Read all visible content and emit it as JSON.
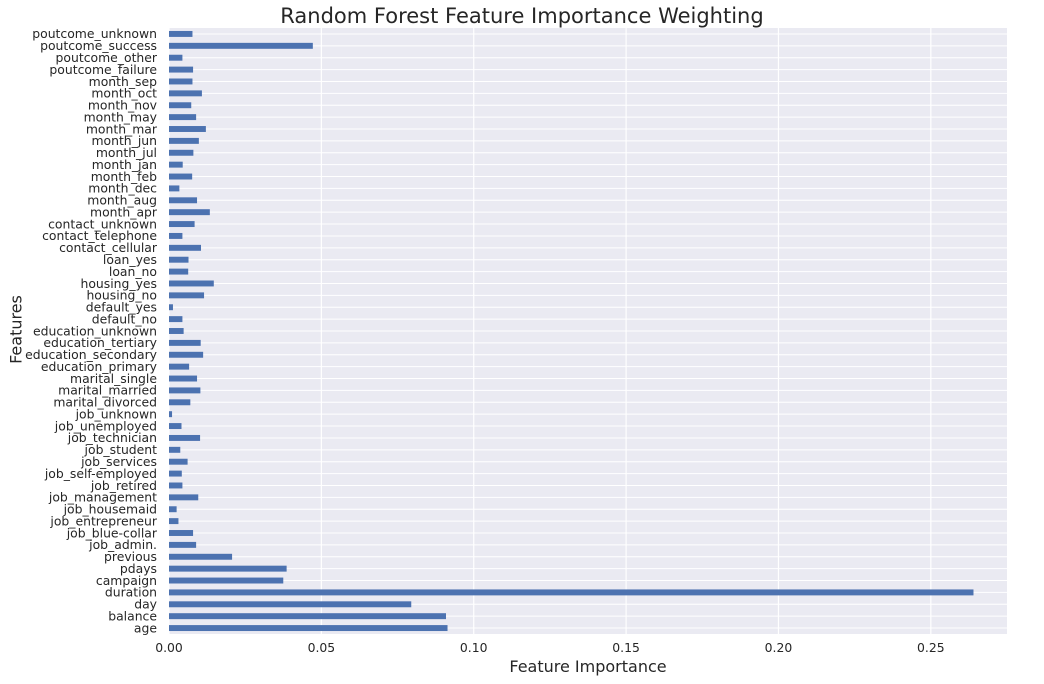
{
  "chart_data": {
    "type": "bar",
    "orientation": "horizontal",
    "title": "Random Forest Feature Importance Weighting",
    "xlabel": "Feature Importance",
    "ylabel": "Features",
    "xlim": [
      0,
      0.275
    ],
    "xticks": [
      0.0,
      0.05,
      0.1,
      0.15,
      0.2,
      0.25
    ],
    "xtick_labels": [
      "0.00",
      "0.05",
      "0.10",
      "0.15",
      "0.20",
      "0.25"
    ],
    "grid": true,
    "bar_color": "#4c72b0",
    "background_color": "#eaeaf2",
    "grid_color": "#ffffff",
    "categories": [
      "age",
      "balance",
      "day",
      "duration",
      "campaign",
      "pdays",
      "previous",
      "job_admin.",
      "job_blue-collar",
      "job_entrepreneur",
      "job_housemaid",
      "job_management",
      "job_retired",
      "job_self-employed",
      "job_services",
      "job_student",
      "job_technician",
      "job_unemployed",
      "job_unknown",
      "marital_divorced",
      "marital_married",
      "marital_single",
      "education_primary",
      "education_secondary",
      "education_tertiary",
      "education_unknown",
      "default_no",
      "default_yes",
      "housing_no",
      "housing_yes",
      "loan_no",
      "loan_yes",
      "contact_cellular",
      "contact_telephone",
      "contact_unknown",
      "month_apr",
      "month_aug",
      "month_dec",
      "month_feb",
      "month_jan",
      "month_jul",
      "month_jun",
      "month_mar",
      "month_may",
      "month_nov",
      "month_oct",
      "month_sep",
      "poutcome_failure",
      "poutcome_other",
      "poutcome_success",
      "poutcome_unknown"
    ],
    "values": [
      0.0914,
      0.0909,
      0.0795,
      0.264,
      0.0375,
      0.0386,
      0.0207,
      0.0089,
      0.0079,
      0.0031,
      0.0025,
      0.0096,
      0.0044,
      0.0042,
      0.0061,
      0.0037,
      0.0102,
      0.0041,
      0.001,
      0.007,
      0.0103,
      0.0092,
      0.0066,
      0.0112,
      0.0104,
      0.0048,
      0.0044,
      0.0013,
      0.0115,
      0.0147,
      0.0063,
      0.0064,
      0.0105,
      0.0044,
      0.0084,
      0.0134,
      0.0092,
      0.0034,
      0.0076,
      0.0045,
      0.008,
      0.0098,
      0.0121,
      0.0089,
      0.0073,
      0.0108,
      0.0077,
      0.0079,
      0.0044,
      0.0472,
      0.0077
    ]
  }
}
